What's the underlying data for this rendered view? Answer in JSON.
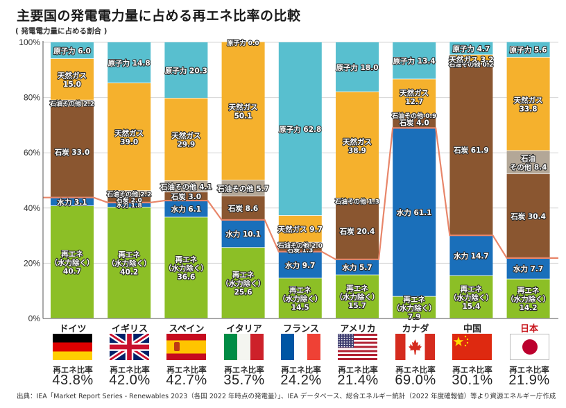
{
  "title": "主要国の発電電力量に占める再エネ比率の比較",
  "subtitle": "( 発電電力量に占める割合 )",
  "source": "出典：IEA「Market Report Series - Renewables 2023（各国 2022 年時点の発電量）」、IEA データベース、総合エネルギー統計（2022 年度確報値）等より資源エネルギー庁作成",
  "ratio_caption": "再エネ比率",
  "colors": {
    "renewable": "#8cbf26",
    "hydro": "#1a6fba",
    "coal": "#8a5630",
    "oil_other": "#b3a797",
    "natural_gas": "#f5b12d",
    "nuclear": "#58bfcf",
    "line": "#e8866a",
    "japan_text": "#c8161d"
  },
  "chart_data": {
    "type": "bar",
    "stacked": true,
    "title": "主要国の発電電力量に占める再エネ比率の比較",
    "subtitle": "( 発電電力量に占める割合 )",
    "xlabel": "",
    "ylabel": "発電電力量に占める割合",
    "ylim": [
      0,
      100
    ],
    "yticks": [
      "0%",
      "20%",
      "40%",
      "60%",
      "80%",
      "100%"
    ],
    "ytick_values": [
      0,
      20,
      40,
      60,
      80,
      100
    ],
    "grid": true,
    "categories": [
      "ドイツ",
      "イギリス",
      "スペイン",
      "イタリア",
      "フランス",
      "アメリカ",
      "カナダ",
      "中国",
      "日本"
    ],
    "series": [
      {
        "name": "再エネ（水力除く）",
        "key": "renewable",
        "values": [
          40.7,
          40.2,
          36.6,
          25.6,
          14.5,
          15.7,
          7.9,
          15.4,
          14.2
        ]
      },
      {
        "name": "水力",
        "key": "hydro",
        "values": [
          3.1,
          1.8,
          6.1,
          10.1,
          9.7,
          5.7,
          61.1,
          14.7,
          7.7
        ]
      },
      {
        "name": "石炭",
        "key": "coal",
        "values": [
          33.0,
          2.0,
          3.0,
          8.6,
          1.3,
          20.4,
          4.0,
          61.9,
          30.4
        ]
      },
      {
        "name": "石油その他",
        "key": "oil_other",
        "values": [
          2.2,
          2.2,
          4.1,
          5.7,
          2.0,
          1.3,
          0.9,
          0.2,
          8.4
        ]
      },
      {
        "name": "天然ガス",
        "key": "natural_gas",
        "values": [
          15.0,
          39.0,
          29.9,
          50.1,
          9.7,
          38.9,
          12.7,
          3.2,
          33.8
        ]
      },
      {
        "name": "原子力",
        "key": "nuclear",
        "values": [
          6.0,
          14.8,
          20.3,
          0.0,
          62.8,
          18.0,
          13.4,
          4.7,
          5.6
        ]
      }
    ],
    "segment_labels": [
      [
        "再エネ|（水力除く）|40.7",
        "水力 3.1",
        "石炭 33.0",
        "石油その他 2.2",
        "天然ガス|15.0",
        "原子力 6.0"
      ],
      [
        "再エネ|（水力除く）|40.2",
        "水力 1.8",
        "石炭 2.0",
        "石油その他 2.2",
        "天然ガス|39.0",
        "原子力 14.8"
      ],
      [
        "再エネ|（水力除く）|36.6",
        "水力 6.1",
        "石炭 3.0",
        "石油その他 4.1",
        "天然ガス|29.9",
        "原子力 20.3"
      ],
      [
        "再エネ|（水力除く）|25.6",
        "水力 10.1",
        "石炭 8.6",
        "石油その他 5.7",
        "天然ガス|50.1",
        "原子力 0.0"
      ],
      [
        "再エネ|（水力除く）|14.5",
        "水力 9.7",
        "石炭 1.3",
        "石油その他 2.0",
        "天然ガス 9.7",
        "原子力 62.8"
      ],
      [
        "再エネ|（水力除く）|15.7",
        "水力 5.7",
        "石炭 20.4",
        "石油その他 1.3",
        "天然ガス|38.9",
        "原子力 18.0"
      ],
      [
        "再エネ|（水力除く）|7.9",
        "水力 61.1",
        "石炭 4.0",
        "石油その他 0.9",
        "天然ガス|12.7",
        "原子力 13.4"
      ],
      [
        "再エネ|（水力除く）|15.4",
        "水力 14.7",
        "石炭 61.9",
        "石油その他 0.2",
        "天然ガス 3.2",
        "原子力 4.7"
      ],
      [
        "再エネ|（水力除く）|14.2",
        "水力 7.7",
        "石炭 30.4",
        "石油|その他 8.4",
        "天然ガス|33.8",
        "原子力 5.6"
      ]
    ],
    "renewable_ratio_line": {
      "name": "再エネ比率",
      "values": [
        43.8,
        42.0,
        42.7,
        35.7,
        24.2,
        21.4,
        69.0,
        30.1,
        21.9
      ]
    }
  },
  "countries": [
    {
      "name": "ドイツ",
      "flag": "germany-flag",
      "ratio": "43.8%"
    },
    {
      "name": "イギリス",
      "flag": "uk-flag",
      "ratio": "42.0%"
    },
    {
      "name": "スペイン",
      "flag": "spain-flag",
      "ratio": "42.7%"
    },
    {
      "name": "イタリア",
      "flag": "italy-flag",
      "ratio": "35.7%"
    },
    {
      "name": "フランス",
      "flag": "france-flag",
      "ratio": "24.2%"
    },
    {
      "name": "アメリカ",
      "flag": "usa-flag",
      "ratio": "21.4%"
    },
    {
      "name": "カナダ",
      "flag": "canada-flag",
      "ratio": "69.0%"
    },
    {
      "name": "中国",
      "flag": "china-flag",
      "ratio": "30.1%"
    },
    {
      "name": "日本",
      "flag": "japan-flag",
      "ratio": "21.9%"
    }
  ]
}
